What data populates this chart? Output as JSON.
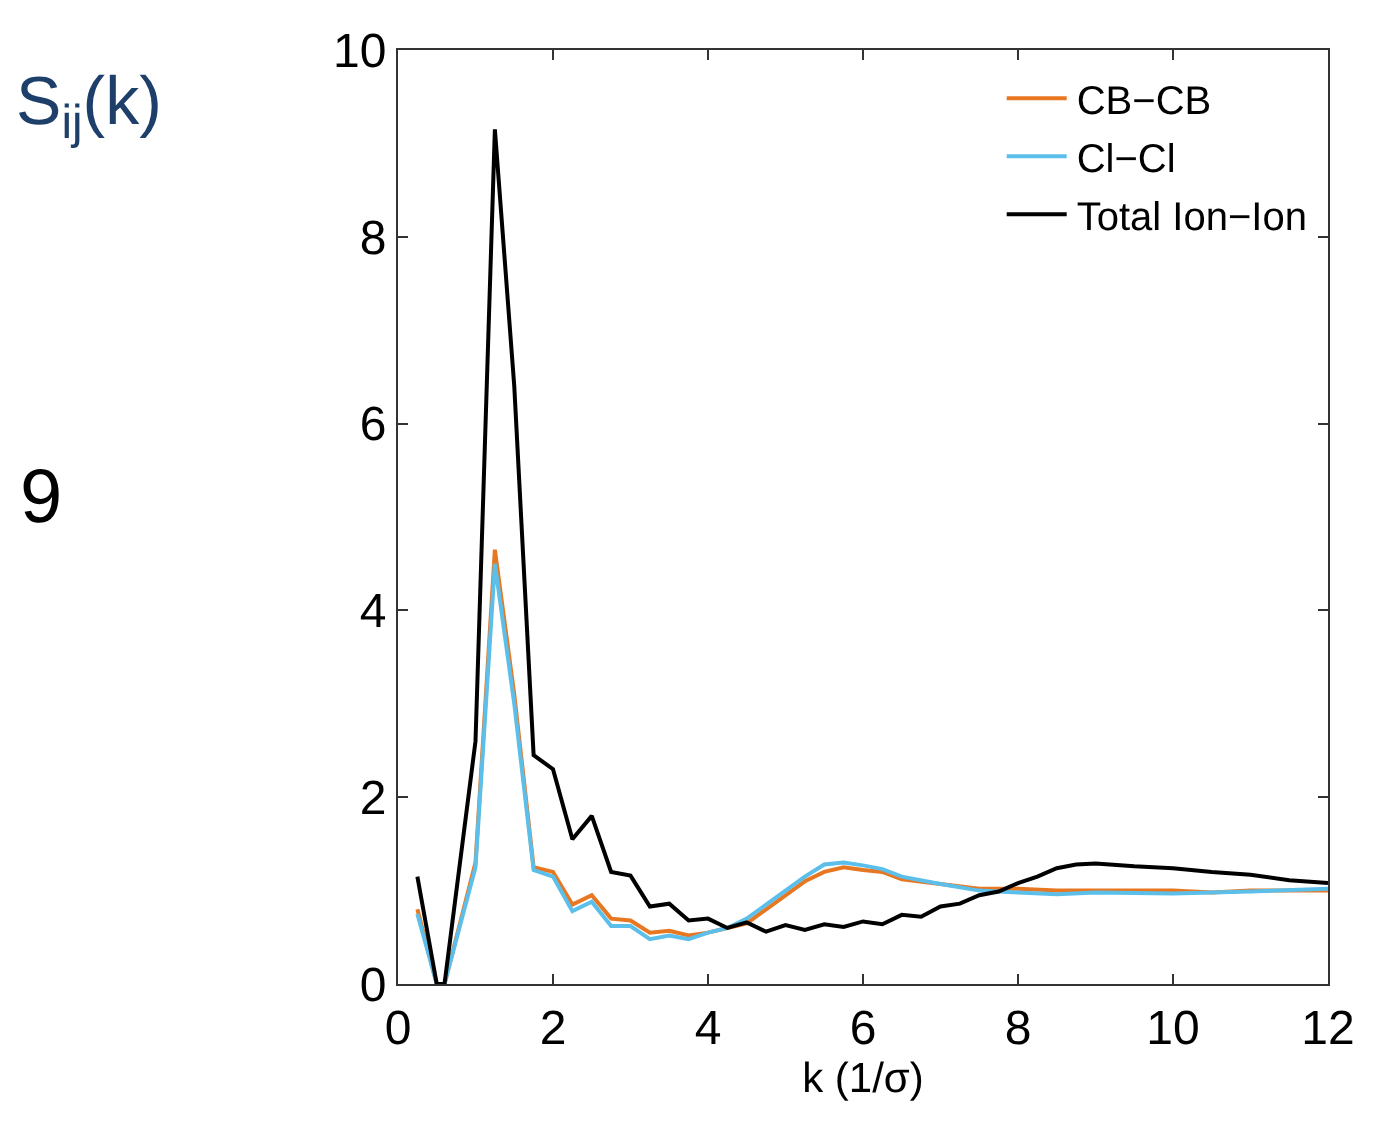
{
  "chart_data": {
    "type": "line",
    "xlabel": "k (1/σ)",
    "ylabel": "S$_{ij}$(k)",
    "annotations": [
      "9"
    ],
    "xlim": [
      0,
      12
    ],
    "ylim": [
      0,
      10
    ],
    "xticks": [
      0,
      2,
      4,
      6,
      8,
      10,
      12
    ],
    "yticks": [
      0,
      2,
      4,
      6,
      8,
      10
    ],
    "legend": "top right",
    "marker": "none",
    "line_style": "solid",
    "series": [
      {
        "name": "CB−CB",
        "color": "#e87722",
        "x": [
          0.25,
          0.5,
          0.6,
          1.0,
          1.25,
          1.5,
          1.75,
          2.0,
          2.25,
          2.5,
          2.75,
          3.0,
          3.25,
          3.5,
          3.75,
          4.0,
          4.25,
          4.5,
          4.75,
          5.0,
          5.25,
          5.5,
          5.75,
          6.0,
          6.25,
          6.5,
          7.0,
          7.5,
          8.0,
          8.5,
          9.0,
          10.0,
          10.5,
          11.0,
          12.0
        ],
        "values": [
          0.8,
          0,
          0,
          1.3,
          4.65,
          3.1,
          1.25,
          1.2,
          0.85,
          0.95,
          0.7,
          0.68,
          0.55,
          0.57,
          0.52,
          0.55,
          0.6,
          0.65,
          0.8,
          0.95,
          1.1,
          1.2,
          1.25,
          1.22,
          1.2,
          1.12,
          1.07,
          1.02,
          1.02,
          1.0,
          1.0,
          1.0,
          0.98,
          1.0,
          1.0
        ]
      },
      {
        "name": "Cl−Cl",
        "color": "#5bbfea",
        "x": [
          0.25,
          0.5,
          0.6,
          1.0,
          1.25,
          1.5,
          1.75,
          2.0,
          2.25,
          2.5,
          2.75,
          3.0,
          3.25,
          3.5,
          3.75,
          4.0,
          4.25,
          4.5,
          4.75,
          5.0,
          5.25,
          5.5,
          5.75,
          6.0,
          6.25,
          6.5,
          7.0,
          7.5,
          8.0,
          8.5,
          9.0,
          10.0,
          11.0,
          12.0
        ],
        "values": [
          0.75,
          0,
          0,
          1.25,
          4.5,
          3.0,
          1.22,
          1.15,
          0.78,
          0.88,
          0.62,
          0.62,
          0.48,
          0.52,
          0.48,
          0.55,
          0.6,
          0.7,
          0.85,
          1.0,
          1.15,
          1.28,
          1.3,
          1.27,
          1.23,
          1.15,
          1.07,
          1.0,
          0.98,
          0.96,
          0.98,
          0.97,
          0.99,
          1.02
        ]
      },
      {
        "name": "Total Ion−Ion",
        "color": "#000000",
        "x": [
          0.25,
          0.5,
          0.6,
          1.0,
          1.25,
          1.5,
          1.75,
          2.0,
          2.25,
          2.5,
          2.75,
          3.0,
          3.25,
          3.5,
          3.75,
          4.0,
          4.25,
          4.5,
          4.75,
          5.0,
          5.25,
          5.5,
          5.75,
          6.0,
          6.25,
          6.5,
          6.75,
          7.0,
          7.25,
          7.5,
          7.75,
          8.0,
          8.25,
          8.5,
          8.75,
          9.0,
          9.5,
          10.0,
          10.5,
          11.0,
          11.5,
          12.0
        ],
        "values": [
          1.15,
          0,
          0,
          2.6,
          9.15,
          6.4,
          2.45,
          2.3,
          1.55,
          1.8,
          1.2,
          1.16,
          0.83,
          0.86,
          0.68,
          0.7,
          0.6,
          0.66,
          0.56,
          0.63,
          0.58,
          0.64,
          0.61,
          0.67,
          0.64,
          0.74,
          0.72,
          0.83,
          0.86,
          0.95,
          0.99,
          1.08,
          1.15,
          1.24,
          1.28,
          1.29,
          1.26,
          1.24,
          1.2,
          1.17,
          1.11,
          1.08
        ]
      }
    ]
  }
}
